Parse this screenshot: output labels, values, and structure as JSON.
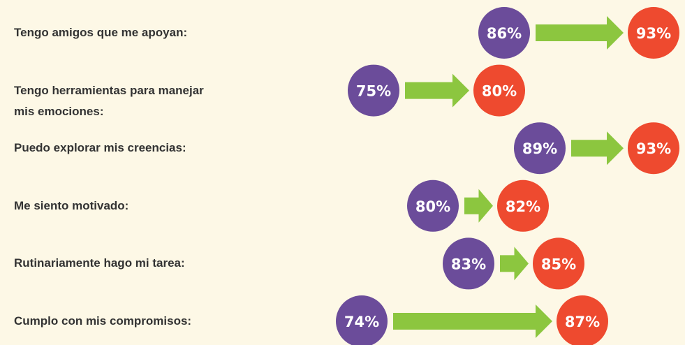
{
  "chart_data": {
    "type": "dumbbell",
    "categories": [
      "Tengo amigos que me apoyan:",
      "Tengo herramientas para manejar mis emociones:",
      "Puedo explorar mis creencias:",
      "Me siento motivado:",
      "Rutinariamente hago mi tarea:",
      "Cumplo con mis compromisos:"
    ],
    "series": [
      {
        "color": "#6b4c9a",
        "values": [
          86,
          75,
          89,
          80,
          83,
          74
        ],
        "value_labels": [
          "86%",
          "75%",
          "89%",
          "80%",
          "83%",
          "74%"
        ]
      },
      {
        "color": "#ee4a2f",
        "values": [
          93,
          80,
          93,
          82,
          85,
          87
        ],
        "value_labels": [
          "93%",
          "80%",
          "93%",
          "82%",
          "85%",
          "87%"
        ]
      }
    ],
    "arrow_color": "#8cc63f"
  }
}
